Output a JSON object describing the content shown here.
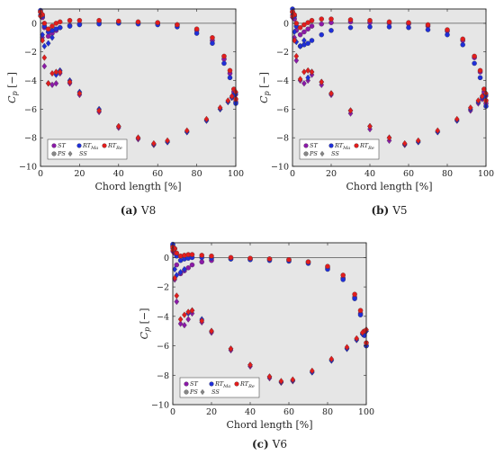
{
  "figure": {
    "panels": [
      {
        "label": "(a)",
        "name": "V8"
      },
      {
        "label": "(b)",
        "name": "V5"
      },
      {
        "label": "(c)",
        "name": "V6"
      }
    ]
  },
  "colors": {
    "ST": "#8b1aa8",
    "RT_Ma": "#1f2fd8",
    "RT_Re": "#e21d1d",
    "panel_bg": "#e6e6e6",
    "zero_line": "#555555"
  },
  "chart_data": [
    {
      "type": "scatter",
      "panel": "(a) V8",
      "xlabel": "Chord length [%]",
      "ylabel": "C_p [−]",
      "xlim": [
        0,
        100
      ],
      "ylim": [
        -10,
        1
      ],
      "xticks": [
        0,
        20,
        40,
        60,
        80,
        100
      ],
      "yticks": [
        0,
        -2,
        -4,
        -6,
        -8,
        -10
      ],
      "grid": false,
      "legend": {
        "placement": "bottom-left",
        "entries": [
          "ST",
          "RT_Ma",
          "RT_Re",
          "PS",
          "SS"
        ]
      },
      "series": [
        {
          "name": "ST",
          "surface": "PS",
          "x": [
            0,
            1,
            2,
            4,
            6,
            8,
            10,
            15,
            20,
            30,
            40,
            50,
            60,
            70,
            80,
            88,
            94,
            97,
            99,
            100
          ],
          "y": [
            0.8,
            0.4,
            -0.3,
            -0.9,
            -0.7,
            -0.5,
            -0.3,
            -0.15,
            -0.05,
            0.05,
            0.05,
            0.03,
            0.0,
            -0.1,
            -0.5,
            -1.2,
            -2.5,
            -3.5,
            -4.8,
            -5.5
          ]
        },
        {
          "name": "ST",
          "surface": "SS",
          "x": [
            0,
            1,
            2,
            4,
            6,
            8,
            10,
            15,
            20,
            30,
            40,
            50,
            58,
            65,
            75,
            85,
            92,
            96,
            98,
            100
          ],
          "y": [
            0.5,
            -1.0,
            -3.0,
            -4.2,
            -4.3,
            -4.2,
            -3.5,
            -4.2,
            -5.0,
            -6.2,
            -7.3,
            -8.1,
            -8.5,
            -8.3,
            -7.6,
            -6.8,
            -6.0,
            -5.5,
            -5.2,
            -5.0
          ]
        },
        {
          "name": "RT_Ma",
          "surface": "PS",
          "x": [
            0,
            1,
            2,
            4,
            6,
            8,
            10,
            15,
            20,
            30,
            40,
            50,
            60,
            70,
            80,
            88,
            94,
            97,
            99,
            100
          ],
          "y": [
            0.9,
            0.5,
            -0.2,
            -0.6,
            -0.5,
            -0.4,
            -0.3,
            -0.2,
            -0.1,
            -0.05,
            0.0,
            -0.05,
            -0.1,
            -0.25,
            -0.7,
            -1.4,
            -2.8,
            -3.8,
            -5.0,
            -5.6
          ]
        },
        {
          "name": "RT_Ma",
          "surface": "SS",
          "x": [
            0,
            1,
            2,
            4,
            6,
            8,
            10,
            15,
            20,
            30,
            40,
            50,
            58,
            65,
            75,
            85,
            92,
            96,
            98,
            100
          ],
          "y": [
            0.6,
            -0.8,
            -1.6,
            -1.4,
            -1.0,
            -3.6,
            -3.3,
            -4.0,
            -4.8,
            -6.0,
            -7.2,
            -8.0,
            -8.45,
            -8.3,
            -7.6,
            -6.8,
            -6.0,
            -5.5,
            -5.2,
            -4.9
          ]
        },
        {
          "name": "RT_Re",
          "surface": "PS",
          "x": [
            0,
            1,
            2,
            4,
            6,
            8,
            10,
            15,
            20,
            30,
            40,
            50,
            60,
            70,
            80,
            88,
            94,
            97,
            99,
            100
          ],
          "y": [
            0.8,
            0.6,
            0.0,
            -0.4,
            -0.2,
            0.0,
            0.1,
            0.2,
            0.2,
            0.2,
            0.15,
            0.1,
            0.05,
            -0.1,
            -0.4,
            -1.0,
            -2.3,
            -3.3,
            -4.6,
            -5.3
          ]
        },
        {
          "name": "RT_Re",
          "surface": "SS",
          "x": [
            0,
            1,
            2,
            4,
            6,
            8,
            10,
            15,
            20,
            30,
            40,
            50,
            58,
            65,
            75,
            85,
            92,
            96,
            98,
            100
          ],
          "y": [
            0.5,
            -1.2,
            -2.4,
            -4.2,
            -3.5,
            -3.4,
            -3.4,
            -4.1,
            -4.9,
            -6.1,
            -7.2,
            -8.0,
            -8.4,
            -8.2,
            -7.5,
            -6.7,
            -5.9,
            -5.4,
            -5.1,
            -4.8
          ]
        }
      ]
    },
    {
      "type": "scatter",
      "panel": "(b) V5",
      "xlabel": "Chord length [%]",
      "ylabel": "C_p [−]",
      "xlim": [
        0,
        100
      ],
      "ylim": [
        -10,
        1
      ],
      "xticks": [
        0,
        20,
        40,
        60,
        80,
        100
      ],
      "yticks": [
        0,
        -2,
        -4,
        -6,
        -8,
        -10
      ],
      "grid": false,
      "legend": {
        "placement": "bottom-left",
        "entries": [
          "ST",
          "RT_Ma",
          "RT_Re",
          "PS",
          "SS"
        ]
      },
      "series": [
        {
          "name": "ST",
          "surface": "PS",
          "x": [
            0,
            1,
            2,
            4,
            6,
            8,
            10,
            15,
            20,
            30,
            40,
            50,
            60,
            70,
            80,
            88,
            94,
            97,
            99,
            100
          ],
          "y": [
            0.8,
            0.3,
            -0.5,
            -0.8,
            -0.6,
            -0.4,
            -0.2,
            -0.05,
            0.05,
            0.1,
            0.05,
            0.0,
            -0.05,
            -0.2,
            -0.55,
            -1.2,
            -2.4,
            -3.4,
            -4.8,
            -5.6
          ]
        },
        {
          "name": "ST",
          "surface": "SS",
          "x": [
            0,
            1,
            2,
            4,
            6,
            8,
            10,
            15,
            20,
            30,
            40,
            50,
            58,
            65,
            75,
            85,
            92,
            96,
            98,
            100
          ],
          "y": [
            0.4,
            -1.0,
            -2.6,
            -4.0,
            -4.2,
            -4.0,
            -3.6,
            -4.3,
            -5.0,
            -6.3,
            -7.4,
            -8.2,
            -8.5,
            -8.3,
            -7.6,
            -6.8,
            -6.1,
            -5.6,
            -5.3,
            -5.1
          ]
        },
        {
          "name": "RT_Ma",
          "surface": "PS",
          "x": [
            0,
            1,
            2,
            4,
            6,
            8,
            10,
            15,
            20,
            30,
            40,
            50,
            60,
            70,
            80,
            88,
            94,
            97,
            99,
            100
          ],
          "y": [
            1.0,
            0.5,
            -0.2,
            -1.6,
            -1.5,
            -1.4,
            -1.2,
            -0.8,
            -0.5,
            -0.3,
            -0.25,
            -0.25,
            -0.3,
            -0.45,
            -0.8,
            -1.5,
            -2.8,
            -3.8,
            -5.1,
            -5.8
          ]
        },
        {
          "name": "RT_Ma",
          "surface": "SS",
          "x": [
            0,
            1,
            2,
            4,
            6,
            8,
            10,
            15,
            20,
            30,
            40,
            50,
            58,
            65,
            75,
            85,
            92,
            96,
            98,
            100
          ],
          "y": [
            0.6,
            -0.6,
            -1.3,
            -1.6,
            -1.2,
            -3.8,
            -3.4,
            -4.1,
            -4.9,
            -6.1,
            -7.2,
            -8.0,
            -8.45,
            -8.3,
            -7.6,
            -6.8,
            -6.0,
            -5.5,
            -5.2,
            -5.0
          ]
        },
        {
          "name": "RT_Re",
          "surface": "PS",
          "x": [
            0,
            1,
            2,
            4,
            6,
            8,
            10,
            15,
            20,
            30,
            40,
            50,
            60,
            70,
            80,
            88,
            94,
            97,
            99,
            100
          ],
          "y": [
            0.8,
            0.6,
            0.0,
            -0.3,
            -0.1,
            0.05,
            0.2,
            0.3,
            0.3,
            0.25,
            0.2,
            0.1,
            0.05,
            -0.1,
            -0.45,
            -1.1,
            -2.3,
            -3.3,
            -4.6,
            -5.4
          ]
        },
        {
          "name": "RT_Re",
          "surface": "SS",
          "x": [
            0,
            1,
            2,
            4,
            6,
            8,
            10,
            15,
            20,
            30,
            40,
            50,
            58,
            65,
            75,
            85,
            92,
            96,
            98,
            100
          ],
          "y": [
            0.5,
            -1.2,
            -2.3,
            -3.9,
            -3.4,
            -3.3,
            -3.4,
            -4.1,
            -4.9,
            -6.1,
            -7.2,
            -8.0,
            -8.4,
            -8.2,
            -7.5,
            -6.7,
            -5.9,
            -5.4,
            -5.1,
            -4.9
          ]
        }
      ]
    },
    {
      "type": "scatter",
      "panel": "(c) V6",
      "xlabel": "Chord length [%]",
      "ylabel": "C_p [−]",
      "xlim": [
        0,
        100
      ],
      "ylim": [
        -10,
        1
      ],
      "xticks": [
        0,
        20,
        40,
        60,
        80,
        100
      ],
      "yticks": [
        0,
        -2,
        -4,
        -6,
        -8,
        -10
      ],
      "grid": false,
      "legend": {
        "placement": "bottom-left",
        "entries": [
          "ST",
          "RT_Ma",
          "RT_Re",
          "PS",
          "SS"
        ]
      },
      "series": [
        {
          "name": "ST",
          "surface": "PS",
          "x": [
            0,
            1,
            2,
            4,
            6,
            8,
            10,
            15,
            20,
            30,
            40,
            50,
            60,
            70,
            80,
            88,
            94,
            97,
            99,
            100
          ],
          "y": [
            0.8,
            0.3,
            -0.5,
            -1.1,
            -0.9,
            -0.7,
            -0.5,
            -0.3,
            -0.2,
            -0.1,
            -0.1,
            -0.1,
            -0.15,
            -0.3,
            -0.7,
            -1.4,
            -2.7,
            -3.8,
            -5.2,
            -6.0
          ]
        },
        {
          "name": "ST",
          "surface": "SS",
          "x": [
            0,
            1,
            2,
            4,
            6,
            8,
            10,
            15,
            20,
            30,
            40,
            50,
            56,
            62,
            72,
            82,
            90,
            95,
            98,
            100
          ],
          "y": [
            0.4,
            -1.5,
            -3.0,
            -4.5,
            -4.6,
            -4.2,
            -3.8,
            -4.4,
            -5.1,
            -6.3,
            -7.4,
            -8.2,
            -8.5,
            -8.4,
            -7.8,
            -7.0,
            -6.2,
            -5.6,
            -5.2,
            -5.0
          ]
        },
        {
          "name": "RT_Ma",
          "surface": "PS",
          "x": [
            0,
            1,
            2,
            4,
            6,
            8,
            10,
            15,
            20,
            30,
            40,
            50,
            60,
            70,
            80,
            88,
            94,
            97,
            99,
            100
          ],
          "y": [
            0.9,
            0.6,
            0.1,
            -0.2,
            -0.1,
            -0.05,
            0.0,
            0.0,
            -0.05,
            -0.1,
            -0.15,
            -0.2,
            -0.25,
            -0.4,
            -0.8,
            -1.5,
            -2.8,
            -3.9,
            -5.3,
            -6.0
          ]
        },
        {
          "name": "RT_Ma",
          "surface": "SS",
          "x": [
            0,
            1,
            2,
            4,
            6,
            8,
            10,
            15,
            20,
            30,
            40,
            50,
            56,
            62,
            72,
            82,
            90,
            95,
            98,
            100
          ],
          "y": [
            0.6,
            -0.8,
            -1.2,
            -1.0,
            -0.8,
            -3.8,
            -3.6,
            -4.2,
            -5.0,
            -6.2,
            -7.3,
            -8.1,
            -8.45,
            -8.35,
            -7.8,
            -7.0,
            -6.2,
            -5.6,
            -5.2,
            -5.0
          ]
        },
        {
          "name": "RT_Re",
          "surface": "PS",
          "x": [
            0,
            1,
            2,
            4,
            6,
            8,
            10,
            15,
            20,
            30,
            40,
            50,
            60,
            70,
            80,
            88,
            94,
            97,
            99,
            100
          ],
          "y": [
            0.7,
            0.6,
            0.3,
            0.1,
            0.15,
            0.2,
            0.2,
            0.15,
            0.1,
            0.0,
            -0.05,
            -0.1,
            -0.15,
            -0.3,
            -0.6,
            -1.2,
            -2.5,
            -3.6,
            -5.0,
            -5.8
          ]
        },
        {
          "name": "RT_Re",
          "surface": "SS",
          "x": [
            0,
            1,
            2,
            4,
            6,
            8,
            10,
            15,
            20,
            30,
            40,
            50,
            56,
            62,
            72,
            82,
            90,
            95,
            98,
            100
          ],
          "y": [
            0.5,
            -1.4,
            -2.6,
            -4.2,
            -3.9,
            -3.7,
            -3.6,
            -4.3,
            -5.0,
            -6.2,
            -7.3,
            -8.1,
            -8.4,
            -8.3,
            -7.7,
            -6.9,
            -6.1,
            -5.5,
            -5.1,
            -4.9
          ]
        }
      ]
    }
  ]
}
